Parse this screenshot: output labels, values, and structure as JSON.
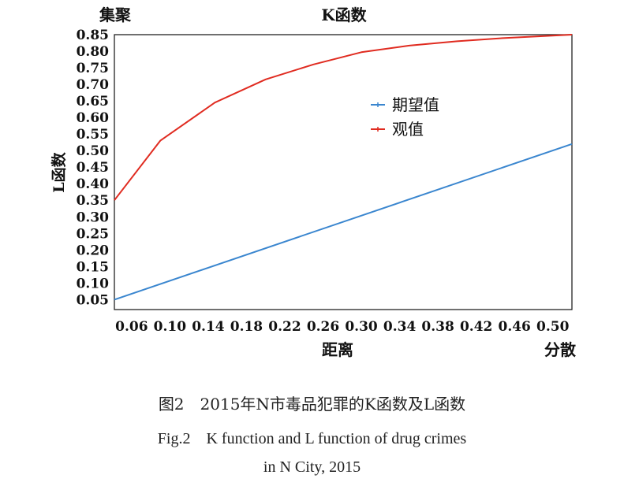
{
  "chart_data": {
    "type": "line",
    "title": "K函数",
    "corner_top_left": "集聚",
    "xlabel": "距离",
    "corner_bottom_right": "分散",
    "ylabel": "L函数",
    "xlim": [
      0.042,
      0.52
    ],
    "ylim": [
      0.02,
      0.85
    ],
    "yticks": [
      "0.85",
      "0.80",
      "0.75",
      "0.70",
      "0.65",
      "0.60",
      "0.55",
      "0.50",
      "0.45",
      "0.40",
      "0.35",
      "0.30",
      "0.25",
      "0.20",
      "0.15",
      "0.10",
      "0.05"
    ],
    "xticks": [
      "0.06",
      "0.10",
      "0.14",
      "0.18",
      "0.22",
      "0.26",
      "0.30",
      "0.34",
      "0.38",
      "0.42",
      "0.46",
      "0.50"
    ],
    "series": [
      {
        "name": "期望值",
        "color": "#3a86cf",
        "x": [
          0.042,
          0.52
        ],
        "y": [
          0.05,
          0.52
        ]
      },
      {
        "name": "观值",
        "color": "#e02b20",
        "x": [
          0.042,
          0.09,
          0.147,
          0.2,
          0.25,
          0.3,
          0.35,
          0.4,
          0.45,
          0.52
        ],
        "y": [
          0.35,
          0.53,
          0.645,
          0.715,
          0.76,
          0.797,
          0.817,
          0.83,
          0.84,
          0.85
        ]
      }
    ],
    "legend_position": "center-right",
    "grid": false
  },
  "caption": {
    "cn": "图2　2015年N市毒品犯罪的K函数及L函数",
    "en_line1": "Fig.2　K function and L function of drug crimes",
    "en_line2": "in N City, 2015"
  }
}
